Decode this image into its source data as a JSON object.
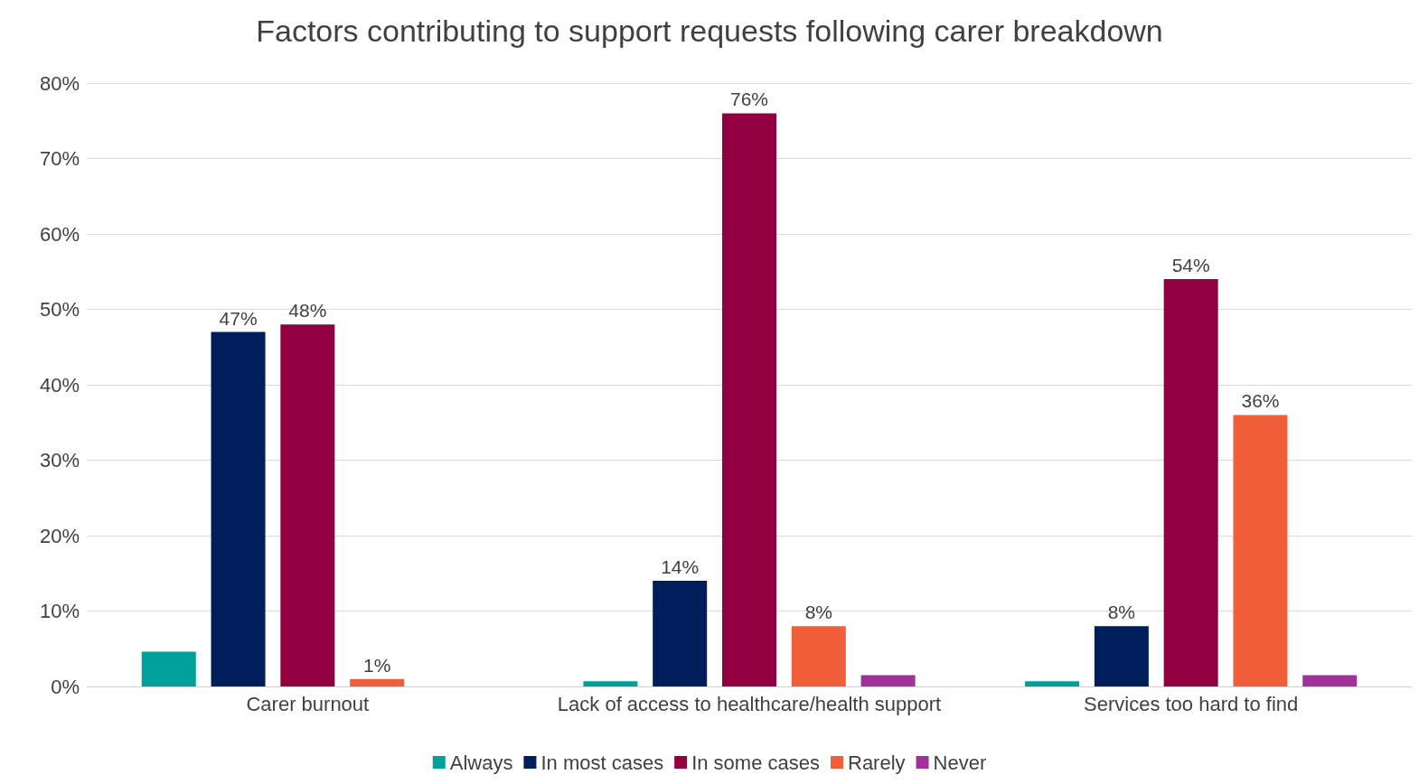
{
  "chart_data": {
    "type": "bar",
    "title": "Factors contributing to support requests following carer breakdown",
    "categories": [
      "Carer burnout",
      "Lack of access to healthcare/health support",
      "Services too hard to find"
    ],
    "series": [
      {
        "name": "Always",
        "color": "#00a19a",
        "values": [
          4.6,
          0.7,
          0.7
        ],
        "value_labels": [
          null,
          null,
          null
        ]
      },
      {
        "name": "In most cases",
        "color": "#001e5a",
        "values": [
          47,
          14,
          8
        ],
        "value_labels": [
          "47%",
          "14%",
          "8%"
        ]
      },
      {
        "name": "In some cases",
        "color": "#930041",
        "values": [
          48,
          76,
          54
        ],
        "value_labels": [
          "48%",
          "76%",
          "54%"
        ]
      },
      {
        "name": "Rarely",
        "color": "#f05f3a",
        "values": [
          1,
          8,
          36
        ],
        "value_labels": [
          "1%",
          "8%",
          "36%"
        ]
      },
      {
        "name": "Never",
        "color": "#a0309a",
        "values": [
          null,
          1.5,
          1.5
        ],
        "value_labels": [
          null,
          null,
          null
        ]
      }
    ],
    "ylim": [
      0,
      80
    ],
    "yticks": [
      {
        "value": 0,
        "label": "0%"
      },
      {
        "value": 10,
        "label": "10%"
      },
      {
        "value": 20,
        "label": "20%"
      },
      {
        "value": 30,
        "label": "30%"
      },
      {
        "value": 40,
        "label": "40%"
      },
      {
        "value": 50,
        "label": "50%"
      },
      {
        "value": 60,
        "label": "60%"
      },
      {
        "value": 70,
        "label": "70%"
      },
      {
        "value": 80,
        "label": "80%"
      }
    ],
    "grid": "y",
    "legend": "bottom"
  }
}
